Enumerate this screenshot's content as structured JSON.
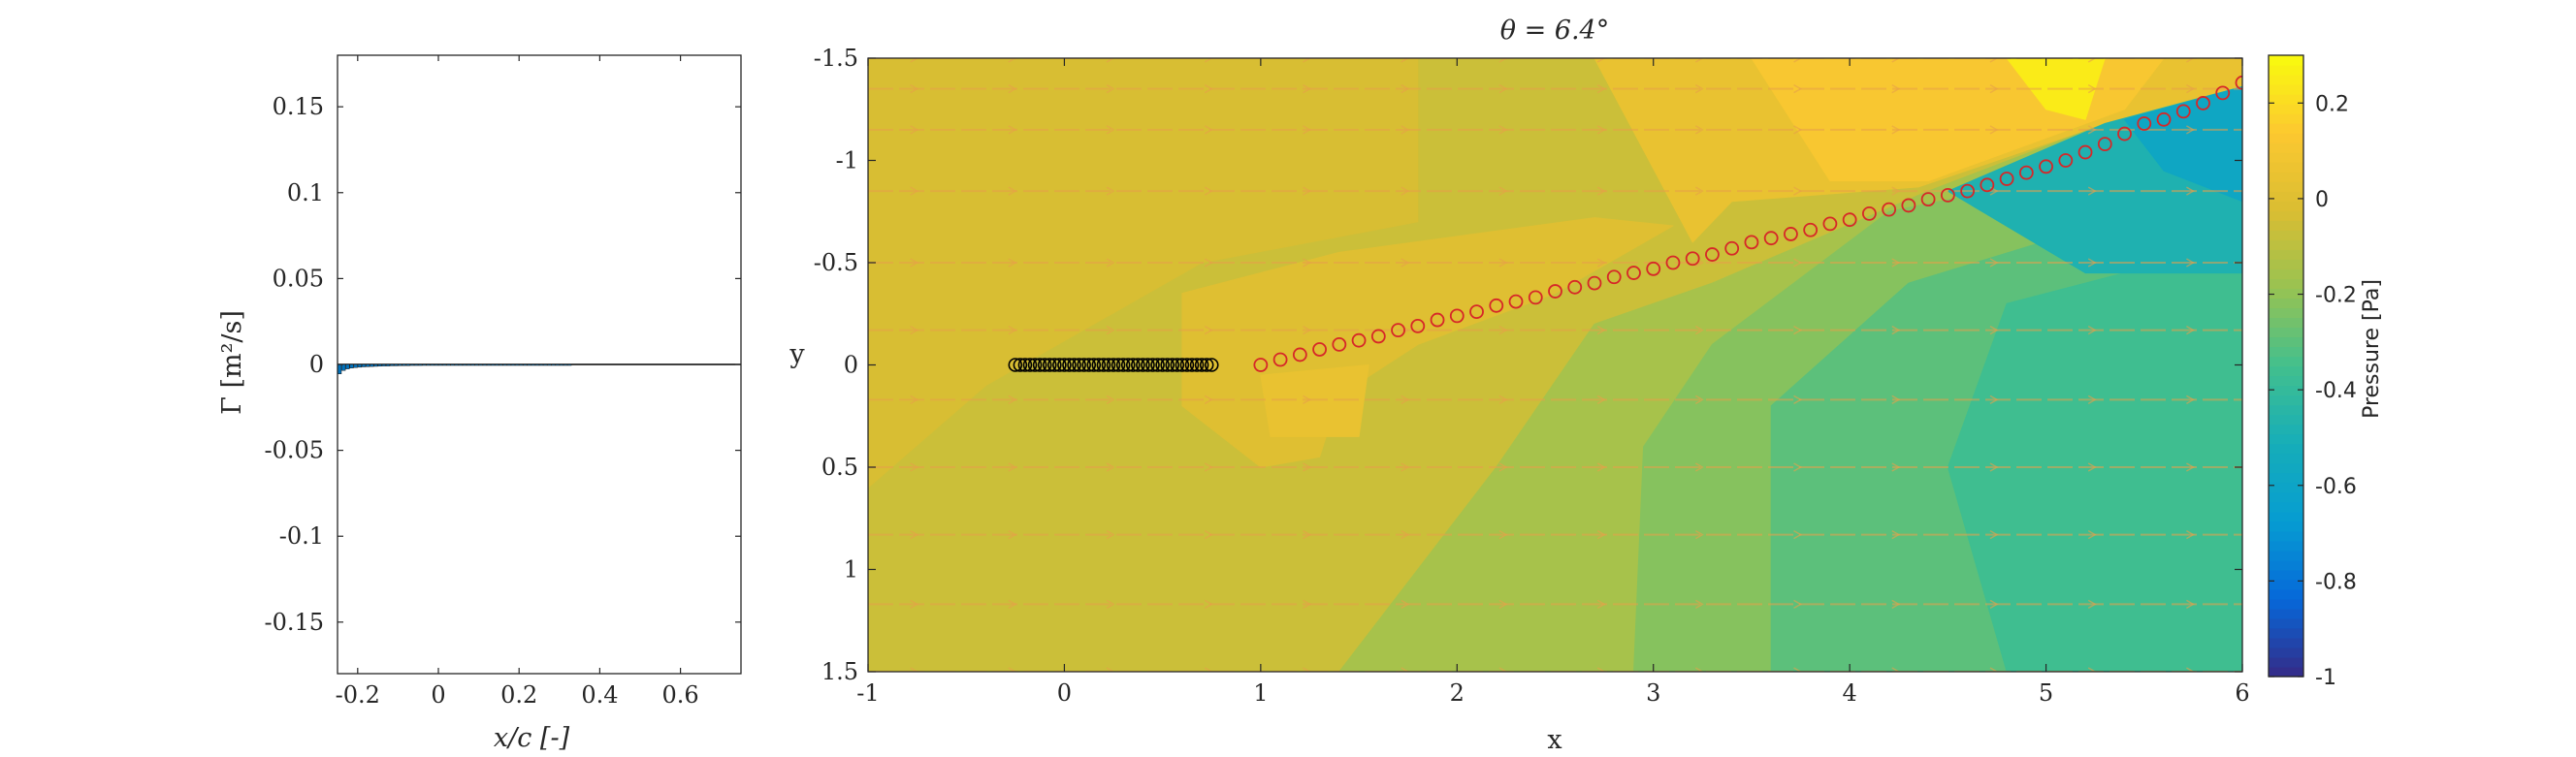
{
  "figure": {
    "colors": {
      "axis": "#262626",
      "marker_bound": "#000000",
      "marker_wake": "#d62728",
      "vector": "#e8a04a"
    }
  },
  "chart_data": [
    {
      "type": "bar",
      "xlabel": "x/c [-]",
      "ylabel": "Γ [m²/s]",
      "xlim": [
        -0.25,
        0.75
      ],
      "ylim": [
        -0.18,
        0.18
      ],
      "xticks": [
        -0.2,
        0,
        0.2,
        0.4,
        0.6
      ],
      "xtick_labels": [
        "-0.2",
        "0",
        "0.2",
        "0.4",
        "0.6"
      ],
      "yticks": [
        0.15,
        0.1,
        0.05,
        0,
        -0.05,
        -0.1,
        -0.15
      ],
      "ytick_labels": [
        "0.15",
        "0.1",
        "0.05",
        "0",
        "-0.05",
        "-0.1",
        "-0.15"
      ],
      "grid": false,
      "bar_color": "#0072bd",
      "x": [
        -0.245,
        -0.235,
        -0.225,
        -0.215,
        -0.205,
        -0.195,
        -0.185,
        -0.175,
        -0.165,
        -0.155,
        -0.145,
        -0.135,
        -0.125,
        -0.115,
        -0.105,
        -0.095,
        -0.085,
        -0.075,
        -0.065,
        -0.055,
        -0.045,
        -0.035,
        -0.025,
        -0.015,
        -0.005,
        0.005,
        0.015,
        0.025,
        0.035,
        0.045,
        0.055,
        0.065,
        0.075,
        0.085,
        0.095,
        0.105,
        0.115,
        0.125,
        0.135,
        0.145,
        0.155,
        0.165,
        0.175,
        0.185,
        0.195,
        0.205,
        0.215,
        0.225,
        0.235,
        0.245,
        0.255,
        0.265,
        0.275,
        0.285,
        0.295,
        0.305,
        0.315,
        0.325
      ],
      "values": [
        -0.0055,
        -0.0035,
        -0.0026,
        -0.0021,
        -0.0018,
        -0.0016,
        -0.0014,
        -0.0013,
        -0.0012,
        -0.0011,
        -0.001,
        -0.0009,
        -0.0009,
        -0.0008,
        -0.0008,
        -0.0007,
        -0.0007,
        -0.0007,
        -0.0006,
        -0.0006,
        -0.0006,
        -0.0005,
        -0.0005,
        -0.0005,
        -0.0005,
        -0.0004,
        -0.0004,
        -0.0004,
        -0.0004,
        -0.0004,
        -0.0003,
        -0.0003,
        -0.0003,
        -0.0003,
        -0.0003,
        -0.0003,
        -0.0003,
        -0.0002,
        -0.0002,
        -0.0002,
        -0.0002,
        -0.0002,
        -0.0002,
        -0.0002,
        -0.0002,
        -0.0002,
        -0.0001,
        -0.0001,
        -0.0001,
        -0.0001,
        -0.0001,
        -0.0001,
        -0.0001,
        -0.0001,
        -0.0001,
        -0.0001,
        -0.0001,
        -0.0001
      ]
    },
    {
      "type": "heatmap",
      "title": "θ = 6.4°",
      "xlabel": "x",
      "ylabel": "y",
      "xlim": [
        -1,
        6
      ],
      "ylim": [
        -1.5,
        1.5
      ],
      "y_reversed": true,
      "xticks": [
        -1,
        0,
        1,
        2,
        3,
        4,
        5,
        6
      ],
      "xtick_labels": [
        "-1",
        "0",
        "1",
        "2",
        "3",
        "4",
        "5",
        "6"
      ],
      "yticks": [
        -1.5,
        -1,
        -0.5,
        0,
        0.5,
        1,
        1.5
      ],
      "ytick_labels": [
        "-1.5",
        "-1",
        "-0.5",
        "0",
        "0.5",
        "1",
        "1.5"
      ],
      "colorbar": {
        "label": "Pressure [Pa]",
        "clim": [
          -1,
          0.3
        ],
        "ticks": [
          0.2,
          0,
          -0.2,
          -0.4,
          -0.6,
          -0.8,
          -1
        ],
        "tick_labels": [
          "0.2",
          "0",
          "-0.2",
          "-0.4",
          "-0.6",
          "-0.8",
          "-1"
        ],
        "colormap": "parula"
      },
      "pressure_regions": [
        {
          "level": -0.06,
          "polygon": [
            [
              -1,
              -1.5
            ],
            [
              6,
              -1.5
            ],
            [
              6,
              1.5
            ],
            [
              -1,
              1.5
            ]
          ]
        },
        {
          "level": -0.03,
          "polygon": [
            [
              -1,
              -1.5
            ],
            [
              1.8,
              -1.5
            ],
            [
              1.8,
              -0.7
            ],
            [
              0.7,
              -0.5
            ],
            [
              -0.4,
              0.1
            ],
            [
              -1,
              0.6
            ]
          ]
        },
        {
          "level": 0.0,
          "polygon": [
            [
              0.6,
              -0.35
            ],
            [
              1.4,
              -0.55
            ],
            [
              2.7,
              -0.72
            ],
            [
              3.1,
              -0.68
            ],
            [
              2.5,
              -0.35
            ],
            [
              1.8,
              -0.1
            ],
            [
              1.4,
              0.15
            ],
            [
              1.3,
              0.45
            ],
            [
              1.0,
              0.5
            ],
            [
              0.6,
              0.2
            ]
          ]
        },
        {
          "level": 0.05,
          "polygon": [
            [
              1.0,
              0.05
            ],
            [
              1.55,
              0.0
            ],
            [
              1.5,
              0.35
            ],
            [
              1.05,
              0.35
            ]
          ]
        },
        {
          "level": 0.05,
          "polygon": [
            [
              2.7,
              -1.5
            ],
            [
              6,
              -1.5
            ],
            [
              6,
              -1.36
            ],
            [
              5.3,
              -1.18
            ],
            [
              4.35,
              -0.87
            ],
            [
              3.4,
              -0.8
            ],
            [
              3.2,
              -0.6
            ]
          ]
        },
        {
          "level": 0.12,
          "polygon": [
            [
              3.5,
              -1.5
            ],
            [
              5.6,
              -1.5
            ],
            [
              5.4,
              -1.25
            ],
            [
              4.4,
              -0.9
            ],
            [
              3.9,
              -0.9
            ]
          ]
        },
        {
          "level": 0.25,
          "polygon": [
            [
              4.8,
              -1.5
            ],
            [
              5.3,
              -1.5
            ],
            [
              5.2,
              -1.2
            ],
            [
              5.0,
              -1.25
            ]
          ]
        },
        {
          "level": -0.15,
          "polygon": [
            [
              1.4,
              1.5
            ],
            [
              2.2,
              0.5
            ],
            [
              2.7,
              -0.2
            ],
            [
              3.3,
              -0.4
            ],
            [
              4.4,
              -0.85
            ],
            [
              5.3,
              -1.18
            ],
            [
              6,
              -1.36
            ],
            [
              6,
              1.5
            ]
          ]
        },
        {
          "level": -0.22,
          "polygon": [
            [
              2.9,
              1.5
            ],
            [
              2.95,
              0.4
            ],
            [
              3.3,
              -0.1
            ],
            [
              4.2,
              -0.75
            ],
            [
              6,
              -1.1
            ],
            [
              6,
              1.5
            ]
          ]
        },
        {
          "level": -0.3,
          "polygon": [
            [
              3.6,
              1.5
            ],
            [
              3.6,
              0.2
            ],
            [
              4.3,
              -0.4
            ],
            [
              6,
              -0.9
            ],
            [
              6,
              1.5
            ]
          ]
        },
        {
          "level": -0.36,
          "polygon": [
            [
              4.8,
              1.5
            ],
            [
              4.5,
              0.5
            ],
            [
              4.8,
              -0.3
            ],
            [
              6,
              -0.6
            ],
            [
              6,
              1.5
            ]
          ]
        },
        {
          "level": -0.48,
          "polygon": [
            [
              4.5,
              -0.85
            ],
            [
              5.3,
              -1.18
            ],
            [
              6,
              -1.36
            ],
            [
              6,
              -0.45
            ],
            [
              5.2,
              -0.45
            ]
          ]
        },
        {
          "level": -0.58,
          "polygon": [
            [
              5.4,
              -1.2
            ],
            [
              6,
              -1.36
            ],
            [
              6,
              -0.8
            ],
            [
              5.6,
              -0.95
            ]
          ]
        }
      ],
      "streak_rows_y": [
        -1.5,
        -1.35,
        -1.15,
        -0.85,
        -0.5,
        -0.17,
        0.17,
        0.5,
        0.83,
        1.17,
        1.5
      ],
      "bound_vortices_x": [
        -0.25,
        -0.225,
        -0.2,
        -0.175,
        -0.15,
        -0.125,
        -0.1,
        -0.075,
        -0.05,
        -0.025,
        0,
        0.025,
        0.05,
        0.075,
        0.1,
        0.125,
        0.15,
        0.175,
        0.2,
        0.225,
        0.25,
        0.275,
        0.3,
        0.325,
        0.35,
        0.375,
        0.4,
        0.425,
        0.45,
        0.475,
        0.5,
        0.525,
        0.55,
        0.575,
        0.6,
        0.625,
        0.65,
        0.675,
        0.7,
        0.725,
        0.75
      ],
      "wake_vortices": [
        [
          1.0,
          0.0
        ],
        [
          1.1,
          -0.026
        ],
        [
          1.2,
          -0.05
        ],
        [
          1.3,
          -0.076
        ],
        [
          1.4,
          -0.1
        ],
        [
          1.5,
          -0.12
        ],
        [
          1.6,
          -0.14
        ],
        [
          1.7,
          -0.17
        ],
        [
          1.8,
          -0.19
        ],
        [
          1.9,
          -0.22
        ],
        [
          2.0,
          -0.24
        ],
        [
          2.1,
          -0.26
        ],
        [
          2.2,
          -0.29
        ],
        [
          2.3,
          -0.31
        ],
        [
          2.4,
          -0.33
        ],
        [
          2.5,
          -0.36
        ],
        [
          2.6,
          -0.38
        ],
        [
          2.7,
          -0.4
        ],
        [
          2.8,
          -0.43
        ],
        [
          2.9,
          -0.45
        ],
        [
          3.0,
          -0.47
        ],
        [
          3.1,
          -0.5
        ],
        [
          3.2,
          -0.52
        ],
        [
          3.3,
          -0.54
        ],
        [
          3.4,
          -0.57
        ],
        [
          3.5,
          -0.6
        ],
        [
          3.6,
          -0.62
        ],
        [
          3.7,
          -0.64
        ],
        [
          3.8,
          -0.66
        ],
        [
          3.9,
          -0.69
        ],
        [
          4.0,
          -0.71
        ],
        [
          4.1,
          -0.74
        ],
        [
          4.2,
          -0.76
        ],
        [
          4.3,
          -0.78
        ],
        [
          4.4,
          -0.81
        ],
        [
          4.5,
          -0.83
        ],
        [
          4.6,
          -0.85
        ],
        [
          4.7,
          -0.88
        ],
        [
          4.8,
          -0.91
        ],
        [
          4.9,
          -0.94
        ],
        [
          5.0,
          -0.97
        ],
        [
          5.1,
          -1.0
        ],
        [
          5.2,
          -1.04
        ],
        [
          5.3,
          -1.08
        ],
        [
          5.4,
          -1.13
        ],
        [
          5.5,
          -1.18
        ],
        [
          5.6,
          -1.2
        ],
        [
          5.7,
          -1.24
        ],
        [
          5.8,
          -1.28
        ],
        [
          5.9,
          -1.33
        ],
        [
          6.0,
          -1.38
        ]
      ]
    }
  ]
}
